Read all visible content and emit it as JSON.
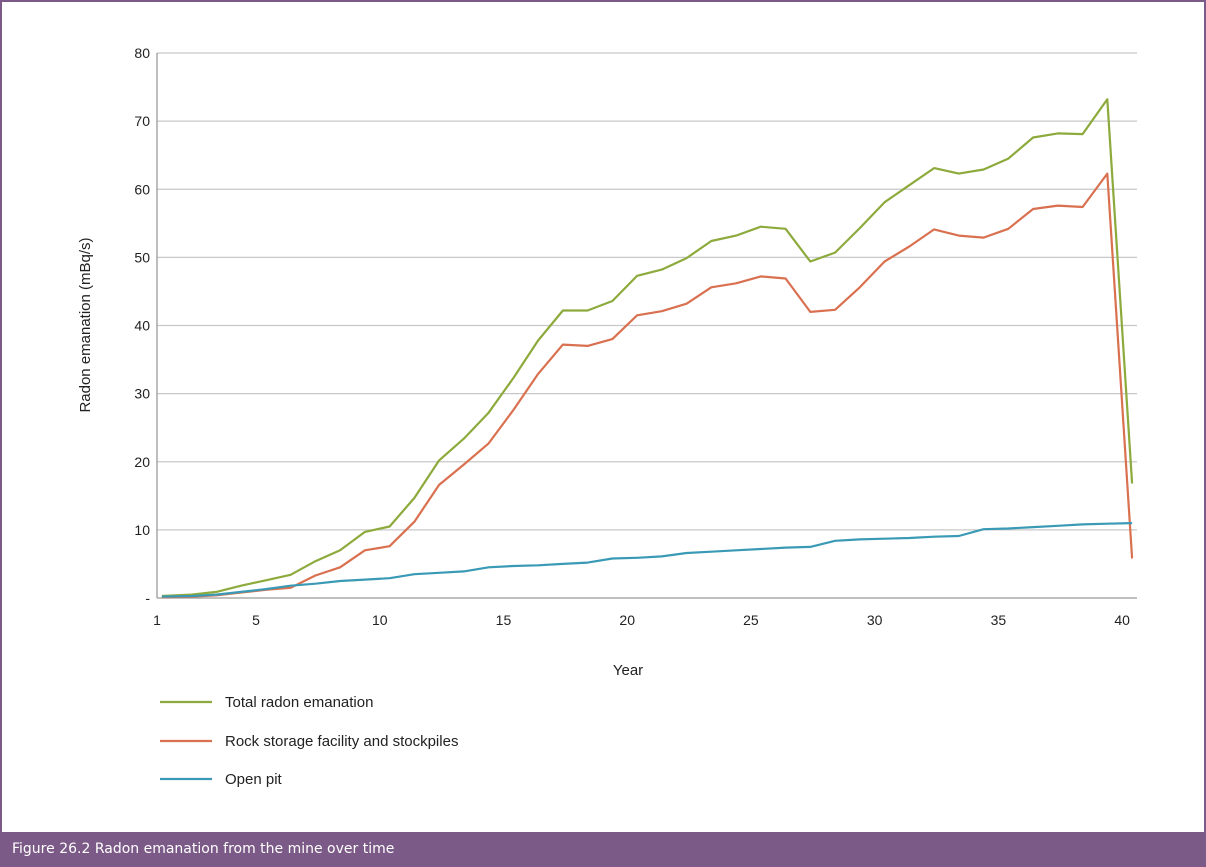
{
  "caption": "Figure 26.2  Radon emanation from the mine over time",
  "colors": {
    "frame": "#7c5a87",
    "grid": "#c8c8c8",
    "axis": "#9a9a9a",
    "total": "#8daa3c",
    "rock": "#d9704f",
    "pit": "#3a9ab5"
  },
  "chart_data": {
    "type": "line",
    "title": "",
    "xlabel": "Year",
    "ylabel": "Radon emanation (mBq/s)",
    "xlim": [
      1,
      40
    ],
    "ylim": [
      0,
      80
    ],
    "x_ticks": [
      1,
      5,
      10,
      15,
      20,
      25,
      30,
      35,
      40
    ],
    "y_ticks": [
      {
        "value": 0,
        "label": "-"
      },
      {
        "value": 10,
        "label": "10"
      },
      {
        "value": 20,
        "label": "20"
      },
      {
        "value": 30,
        "label": "30"
      },
      {
        "value": 40,
        "label": "40"
      },
      {
        "value": 50,
        "label": "50"
      },
      {
        "value": 60,
        "label": "60"
      },
      {
        "value": 70,
        "label": "70"
      },
      {
        "value": 80,
        "label": "80"
      }
    ],
    "grid": true,
    "legend_position": "bottom-left",
    "x": [
      1,
      2,
      3,
      4,
      5,
      6,
      7,
      8,
      9,
      10,
      11,
      12,
      13,
      14,
      15,
      16,
      17,
      18,
      19,
      20,
      21,
      22,
      23,
      24,
      25,
      26,
      27,
      28,
      29,
      30,
      31,
      32,
      33,
      34,
      35,
      36,
      37,
      38,
      39,
      40
    ],
    "series": [
      {
        "name": "Total radon emanation",
        "color_key": "total",
        "values": [
          0.3,
          0.5,
          0.9,
          1.8,
          2.6,
          3.4,
          5.4,
          7.0,
          9.7,
          10.5,
          14.7,
          20.2,
          23.4,
          27.2,
          32.3,
          37.8,
          42.2,
          42.2,
          43.6,
          47.3,
          48.2,
          49.9,
          52.4,
          53.2,
          54.5,
          54.2,
          49.4,
          50.7,
          54.3,
          58.1,
          60.6,
          63.1,
          62.3,
          62.9,
          64.5,
          67.6,
          68.2,
          68.1,
          73.2,
          16.8
        ]
      },
      {
        "name": "Rock storage facility and stockpiles",
        "color_key": "rock",
        "values": [
          0.1,
          0.2,
          0.4,
          0.8,
          1.2,
          1.5,
          3.3,
          4.5,
          7.0,
          7.6,
          11.2,
          16.6,
          19.6,
          22.7,
          27.6,
          32.9,
          37.2,
          37.0,
          38.0,
          41.5,
          42.1,
          43.2,
          45.6,
          46.2,
          47.2,
          46.9,
          42.0,
          42.3,
          45.6,
          49.4,
          51.6,
          54.1,
          53.2,
          52.9,
          54.2,
          57.1,
          57.6,
          57.4,
          62.3,
          5.8
        ]
      },
      {
        "name": "Open pit",
        "color_key": "pit",
        "values": [
          0.2,
          0.3,
          0.5,
          0.9,
          1.3,
          1.8,
          2.1,
          2.5,
          2.7,
          2.9,
          3.5,
          3.7,
          3.9,
          4.5,
          4.7,
          4.8,
          5.0,
          5.2,
          5.8,
          5.9,
          6.1,
          6.6,
          6.8,
          7.0,
          7.2,
          7.4,
          7.5,
          8.4,
          8.6,
          8.7,
          8.8,
          9.0,
          9.1,
          10.1,
          10.2,
          10.4,
          10.6,
          10.8,
          10.9,
          11.0
        ]
      }
    ]
  }
}
